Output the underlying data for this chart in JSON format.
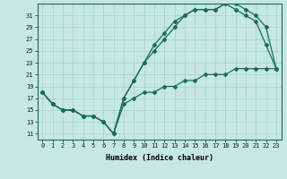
{
  "xlabel": "Humidex (Indice chaleur)",
  "bg_color": "#c5e8e0",
  "grid_color": "#a8d0c8",
  "line_color": "#1a6b5a",
  "xlim": [
    -0.5,
    23.5
  ],
  "ylim": [
    10,
    33
  ],
  "xticks": [
    0,
    1,
    2,
    3,
    4,
    5,
    6,
    7,
    8,
    9,
    10,
    11,
    12,
    13,
    14,
    15,
    16,
    17,
    18,
    19,
    20,
    21,
    22,
    23
  ],
  "yticks": [
    11,
    13,
    15,
    17,
    19,
    21,
    23,
    25,
    27,
    29,
    31
  ],
  "line1_x": [
    0,
    1,
    2,
    3,
    4,
    5,
    6,
    7,
    8,
    9,
    10,
    11,
    12,
    13,
    14,
    15,
    16,
    17,
    18,
    19,
    20,
    21,
    22,
    23
  ],
  "line1_y": [
    18,
    16,
    15,
    15,
    14,
    14,
    13,
    11,
    17,
    20,
    23,
    26,
    28,
    30,
    31,
    32,
    32,
    32,
    33,
    33,
    32,
    31,
    29,
    22
  ],
  "line2_x": [
    0,
    1,
    2,
    3,
    4,
    5,
    6,
    7,
    8,
    9,
    10,
    11,
    12,
    13,
    14,
    15,
    16,
    17,
    18,
    19,
    20,
    21,
    22,
    23
  ],
  "line2_y": [
    18,
    16,
    15,
    15,
    14,
    14,
    13,
    11,
    17,
    20,
    23,
    25,
    27,
    29,
    31,
    32,
    32,
    32,
    33,
    32,
    31,
    30,
    26,
    22
  ],
  "line3_x": [
    0,
    1,
    2,
    3,
    4,
    5,
    6,
    7,
    8,
    9,
    10,
    11,
    12,
    13,
    14,
    15,
    16,
    17,
    18,
    19,
    20,
    21,
    22,
    23
  ],
  "line3_y": [
    18,
    16,
    15,
    15,
    14,
    14,
    13,
    11,
    16,
    17,
    18,
    18,
    19,
    19,
    20,
    20,
    21,
    21,
    21,
    22,
    22,
    22,
    22,
    22
  ],
  "marker": "D",
  "markersize": 2.0,
  "linewidth": 0.9,
  "tick_fontsize": 5.0,
  "xlabel_fontsize": 6.0
}
